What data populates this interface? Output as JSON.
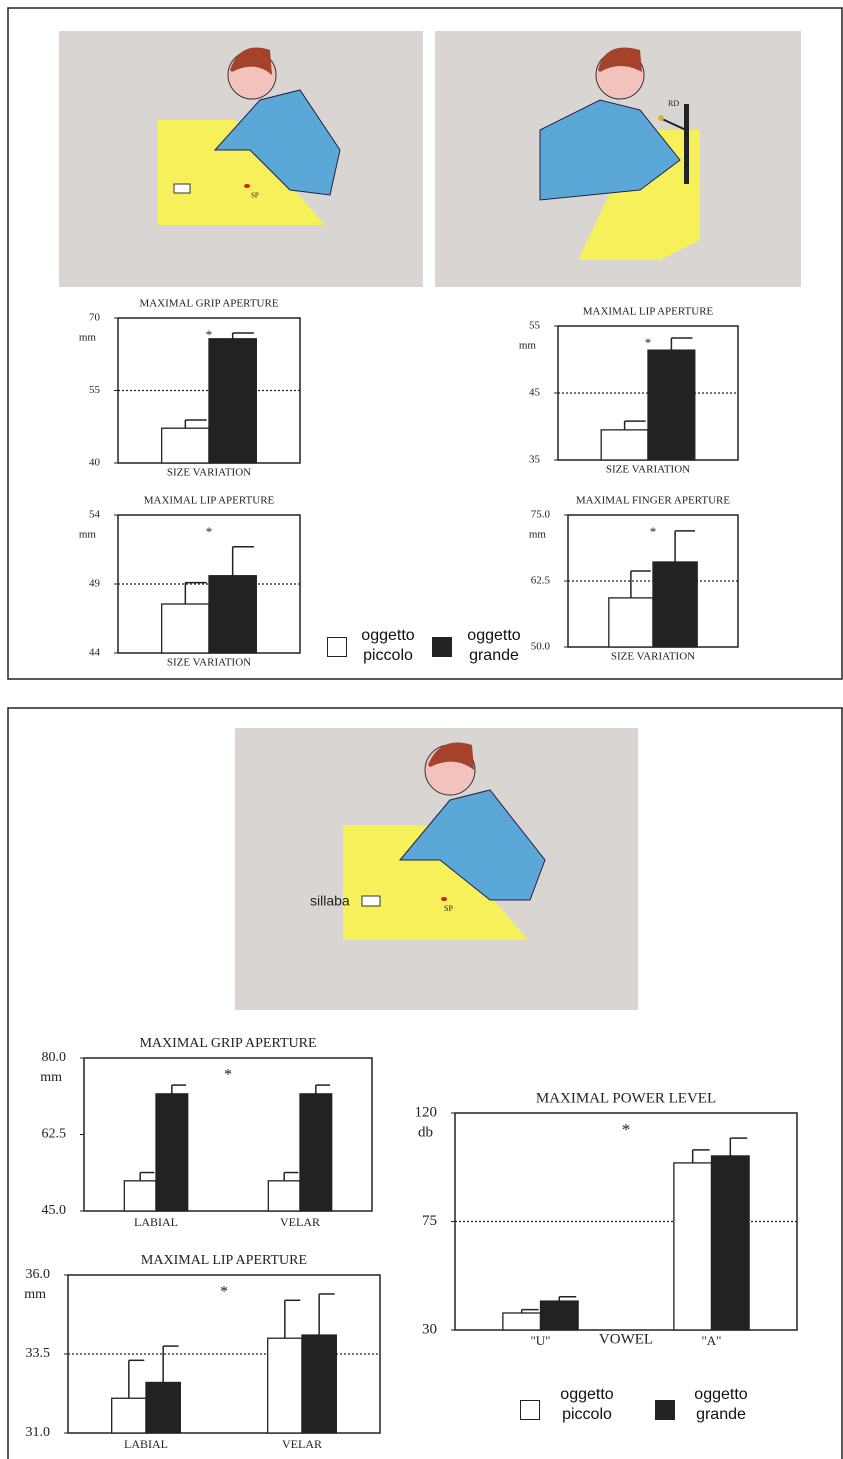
{
  "chart_data": [
    {
      "type": "bar",
      "title": "MAXIMAL GRIP APERTURE",
      "unit": "mm",
      "annotation": "*",
      "x_label": "SIZE VARIATION",
      "series": [
        {
          "name": "oggetto piccolo",
          "color": "#ffffff",
          "values": [
            47.2
          ],
          "errors": [
            1.7
          ]
        },
        {
          "name": "oggetto grande",
          "color": "#222222",
          "values": [
            65.7
          ],
          "errors": [
            1.2
          ]
        }
      ],
      "ylim": [
        40,
        70
      ],
      "yticks": [
        40,
        55,
        70
      ],
      "reference_line": 55
    },
    {
      "type": "bar",
      "title": "MAXIMAL LIP APERTURE",
      "unit": "mm",
      "annotation": "*",
      "x_label": "SIZE VARIATION",
      "series": [
        {
          "name": "oggetto piccolo",
          "color": "#ffffff",
          "values": [
            47.55
          ],
          "errors": [
            1.55
          ]
        },
        {
          "name": "oggetto grande",
          "color": "#222222",
          "values": [
            49.6
          ],
          "errors": [
            2.1
          ]
        }
      ],
      "ylim": [
        44,
        54
      ],
      "yticks": [
        44,
        49,
        54
      ],
      "reference_line": 49
    },
    {
      "type": "bar",
      "title": "MAXIMAL LIP APERTURE",
      "unit": "mm",
      "annotation": "*",
      "x_label": "SIZE VARIATION",
      "series": [
        {
          "name": "oggetto piccolo",
          "color": "#ffffff",
          "values": [
            39.5
          ],
          "errors": [
            1.3
          ]
        },
        {
          "name": "oggetto grande",
          "color": "#222222",
          "values": [
            51.4
          ],
          "errors": [
            1.8
          ]
        }
      ],
      "ylim": [
        35,
        55
      ],
      "yticks": [
        35,
        45,
        55
      ],
      "reference_line": 45
    },
    {
      "type": "bar",
      "title": "MAXIMAL FINGER APERTURE",
      "unit": "mm",
      "annotation": "*",
      "x_label": "SIZE VARIATION",
      "series": [
        {
          "name": "oggetto piccolo",
          "color": "#ffffff",
          "values": [
            59.3
          ],
          "errors": [
            5.1
          ]
        },
        {
          "name": "oggetto grande",
          "color": "#222222",
          "values": [
            66.1
          ],
          "errors": [
            5.9
          ]
        }
      ],
      "ylim": [
        50,
        75
      ],
      "yticks": [
        {
          "value": 50,
          "label": "50.0"
        },
        62.5,
        {
          "value": 75,
          "label": "75.0"
        }
      ],
      "reference_line": 62.5
    },
    {
      "type": "bar",
      "title": "MAXIMAL GRIP APERTURE",
      "unit": "mm",
      "annotation": "*",
      "categories": [
        "LABIAL",
        "VELAR"
      ],
      "series": [
        {
          "name": "oggetto piccolo",
          "color": "#ffffff",
          "values": [
            51.9,
            51.9
          ],
          "errors": [
            1.9,
            1.9
          ]
        },
        {
          "name": "oggetto grande",
          "color": "#222222",
          "values": [
            71.8,
            71.8
          ],
          "errors": [
            2.0,
            2.0
          ]
        }
      ],
      "ylim": [
        45,
        80
      ],
      "yticks": [
        {
          "value": 45,
          "label": "45.0"
        },
        62.5,
        {
          "value": 80,
          "label": "80.0"
        }
      ]
    },
    {
      "type": "bar",
      "title": "MAXIMAL LIP APERTURE",
      "unit": "mm",
      "annotation": "*",
      "categories": [
        "LABIAL",
        "VELAR"
      ],
      "series": [
        {
          "name": "oggetto piccolo",
          "color": "#ffffff",
          "values": [
            32.1,
            34.0
          ],
          "errors": [
            1.2,
            1.2
          ]
        },
        {
          "name": "oggetto grande",
          "color": "#222222",
          "values": [
            32.6,
            34.1
          ],
          "errors": [
            1.15,
            1.3
          ]
        }
      ],
      "ylim": [
        31,
        36
      ],
      "yticks": [
        {
          "value": 31,
          "label": "31.0"
        },
        33.5,
        {
          "value": 36,
          "label": "36.0"
        }
      ],
      "reference_line": 33.5
    },
    {
      "type": "bar",
      "title": "MAXIMAL POWER LEVEL",
      "unit": "db",
      "annotation": "*",
      "x_label": "VOWEL",
      "categories": [
        "\"U\"",
        "\"A\""
      ],
      "series": [
        {
          "name": "oggetto piccolo",
          "color": "#ffffff",
          "values": [
            37.05,
            99.3
          ],
          "errors": [
            1.4,
            5.4
          ]
        },
        {
          "name": "oggetto grande",
          "color": "#222222",
          "values": [
            42.0,
            102.2
          ],
          "errors": [
            1.8,
            7.4
          ]
        }
      ],
      "ylim": [
        30,
        120
      ],
      "yticks": [
        30,
        75,
        120
      ],
      "reference_line": 75
    }
  ],
  "illustrations": {
    "labels": [
      "SP",
      "RD",
      "SP",
      "sillaba"
    ]
  }
}
